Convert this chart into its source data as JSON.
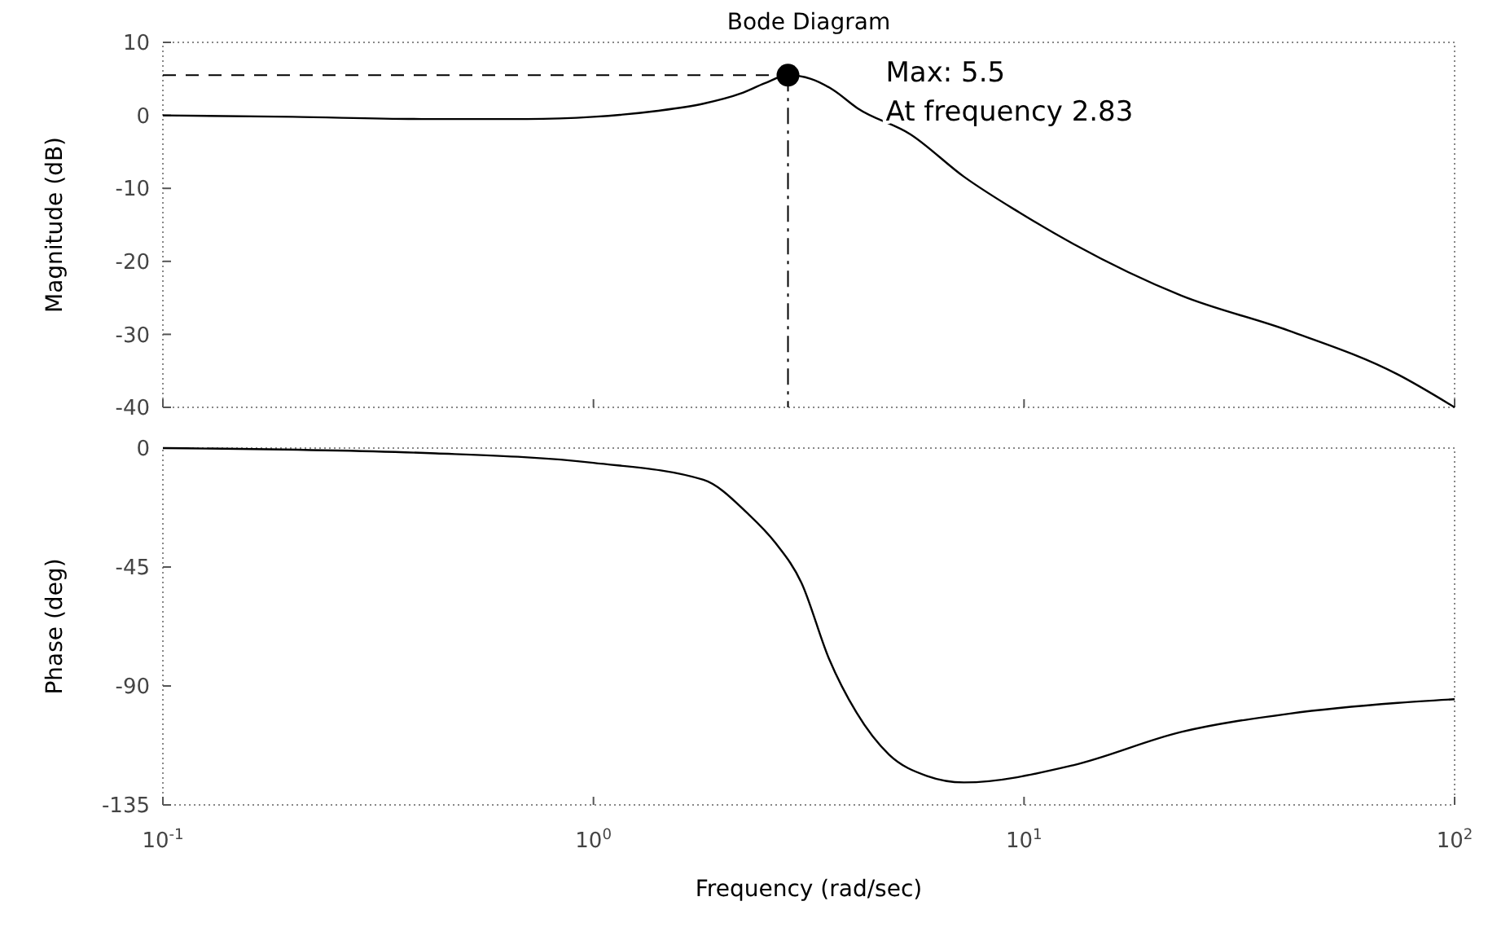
{
  "chart_data": [
    {
      "type": "line",
      "title": "Bode Diagram",
      "ylabel": "Magnitude (dB)",
      "log": "x",
      "xlim": [
        0.1,
        100
      ],
      "xticks": [
        {
          "value": 0.1,
          "label": null
        },
        {
          "value": 1,
          "label": null
        },
        {
          "value": 10,
          "label": null
        },
        {
          "value": 100,
          "label": null
        }
      ],
      "ylim": [
        -40,
        10
      ],
      "yticks": [
        10,
        0,
        -10,
        -20,
        -30,
        -40
      ],
      "tick_labels": "y",
      "grid": false,
      "line_style": "solid",
      "series": [
        {
          "type": "line",
          "color": "#000000",
          "x": [
            0.1,
            0.2,
            0.4,
            0.7,
            1.0,
            1.4,
            1.8,
            2.2,
            2.5,
            2.83,
            3.2,
            3.6,
            4.1,
            5.45,
            7.25,
            9.75,
            13,
            23.2,
            41.2,
            73.8,
            100
          ],
          "values": [
            0,
            -0.2,
            -0.5,
            -0.5,
            -0.2,
            0.6,
            1.6,
            3.0,
            4.4,
            5.5,
            5.0,
            3.5,
            1.0,
            -2.6,
            -8.4,
            -13.3,
            -17.6,
            -24.7,
            -29.5,
            -35.5,
            -40
          ]
        },
        {
          "type": "scatter",
          "color": "#000000",
          "marker": "circle",
          "x": [
            2.83
          ],
          "values": [
            5.5
          ]
        }
      ],
      "ref_lines": [
        {
          "axis": "y",
          "value": 5.5,
          "line_style": "dashed"
        },
        {
          "axis": "x",
          "value": 2.83,
          "line_style": "dashed"
        }
      ],
      "annotations": [
        "Max: 5.5",
        "At frequency 2.83"
      ]
    },
    {
      "type": "line",
      "xlabel": "Frequency (rad/sec)",
      "ylabel": "Phase (deg)",
      "log": "x",
      "xlim": [
        0.1,
        100
      ],
      "xticks": [
        {
          "value": 0.1,
          "label": "10$^{-1}$"
        },
        {
          "value": 1,
          "label": "10$^{0}$"
        },
        {
          "value": 10,
          "label": "10$^{1}$"
        },
        {
          "value": 100,
          "label": "10$^{2}$"
        }
      ],
      "ylim": [
        -135,
        0
      ],
      "yticks": [
        0,
        -45,
        -90,
        -135
      ],
      "grid": false,
      "line_style": "solid",
      "series": [
        {
          "type": "line",
          "color": "#000000",
          "x": [
            0.1,
            0.43,
            1.0,
            1.8,
            2.28,
            2.65,
            3.04,
            3.52,
            4.08,
            4.86,
            5.94,
            7.25,
            13,
            23.2,
            41.2,
            73.8,
            100
          ],
          "values": [
            0,
            -2,
            -5.6,
            -12,
            -24.7,
            -36,
            -50.9,
            -79.5,
            -100,
            -116,
            -124,
            -126.5,
            -120,
            -107.4,
            -100.5,
            -96.4,
            -95
          ]
        }
      ]
    }
  ]
}
